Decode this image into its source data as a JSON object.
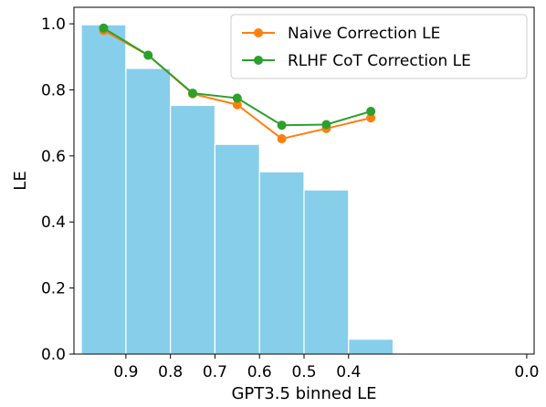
{
  "chart_data": {
    "type": "bar",
    "xlabel": "GPT3.5 binned LE",
    "ylabel": "LE",
    "x_reversed": true,
    "xlim": [
      1.0,
      0.0
    ],
    "ylim": [
      0.0,
      1.0
    ],
    "grid": false,
    "legend_position": "top-right",
    "x_ticks": [
      {
        "value": 0.9,
        "label": "0.9"
      },
      {
        "value": 0.8,
        "label": "0.8"
      },
      {
        "value": 0.7,
        "label": "0.7"
      },
      {
        "value": 0.6,
        "label": "0.6"
      },
      {
        "value": 0.5,
        "label": "0.5"
      },
      {
        "value": 0.4,
        "label": "0.4"
      },
      {
        "value": 0.0,
        "label": "0.0"
      }
    ],
    "y_ticks": [
      {
        "value": 0.0,
        "label": "0.0"
      },
      {
        "value": 0.2,
        "label": "0.2"
      },
      {
        "value": 0.4,
        "label": "0.4"
      },
      {
        "value": 0.6,
        "label": "0.6"
      },
      {
        "value": 0.8,
        "label": "0.8"
      },
      {
        "value": 1.0,
        "label": "1.0"
      }
    ],
    "bars": {
      "color": "#87ceeb",
      "bins": [
        {
          "x_start": 1.0,
          "x_end": 0.9,
          "value": 0.997
        },
        {
          "x_start": 0.9,
          "x_end": 0.8,
          "value": 0.865
        },
        {
          "x_start": 0.8,
          "x_end": 0.7,
          "value": 0.753
        },
        {
          "x_start": 0.7,
          "x_end": 0.6,
          "value": 0.635
        },
        {
          "x_start": 0.6,
          "x_end": 0.5,
          "value": 0.552
        },
        {
          "x_start": 0.5,
          "x_end": 0.4,
          "value": 0.497
        },
        {
          "x_start": 0.4,
          "x_end": 0.3,
          "value": 0.045
        }
      ]
    },
    "series": [
      {
        "name": "Naive Correction LE",
        "color": "#ff7f0e",
        "x": [
          0.95,
          0.85,
          0.75,
          0.65,
          0.55,
          0.45,
          0.35
        ],
        "values": [
          0.98,
          0.905,
          0.788,
          0.755,
          0.652,
          0.683,
          0.715
        ]
      },
      {
        "name": "RLHF CoT Correction LE",
        "color": "#2ca02c",
        "x": [
          0.95,
          0.85,
          0.75,
          0.65,
          0.55,
          0.45,
          0.35
        ],
        "values": [
          0.987,
          0.905,
          0.79,
          0.775,
          0.693,
          0.695,
          0.735
        ]
      }
    ]
  }
}
